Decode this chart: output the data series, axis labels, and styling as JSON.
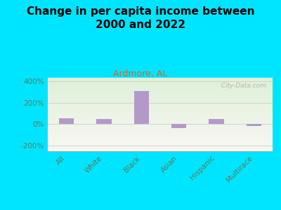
{
  "title": "Change in per capita income between\n2000 and 2022",
  "subtitle": "Ardmore, AL",
  "categories": [
    "All",
    "White",
    "Black",
    "Asian",
    "Hispanic",
    "Multirace"
  ],
  "values": [
    55,
    50,
    310,
    -35,
    45,
    -15
  ],
  "bar_color": "#b399c8",
  "background_outer": "#00e5ff",
  "background_inner_top": "#dff0d8",
  "background_inner_bottom": "#f8f8f3",
  "title_fontsize": 11,
  "subtitle_fontsize": 9,
  "subtitle_color": "#cc6633",
  "title_color": "#000000",
  "tick_label_color": "#5a7a5a",
  "ylim": [
    -250,
    430
  ],
  "yticks": [
    -200,
    0,
    200,
    400
  ],
  "ytick_labels": [
    "-200%",
    "0%",
    "200%",
    "400%"
  ],
  "watermark": "  City-Data.com"
}
